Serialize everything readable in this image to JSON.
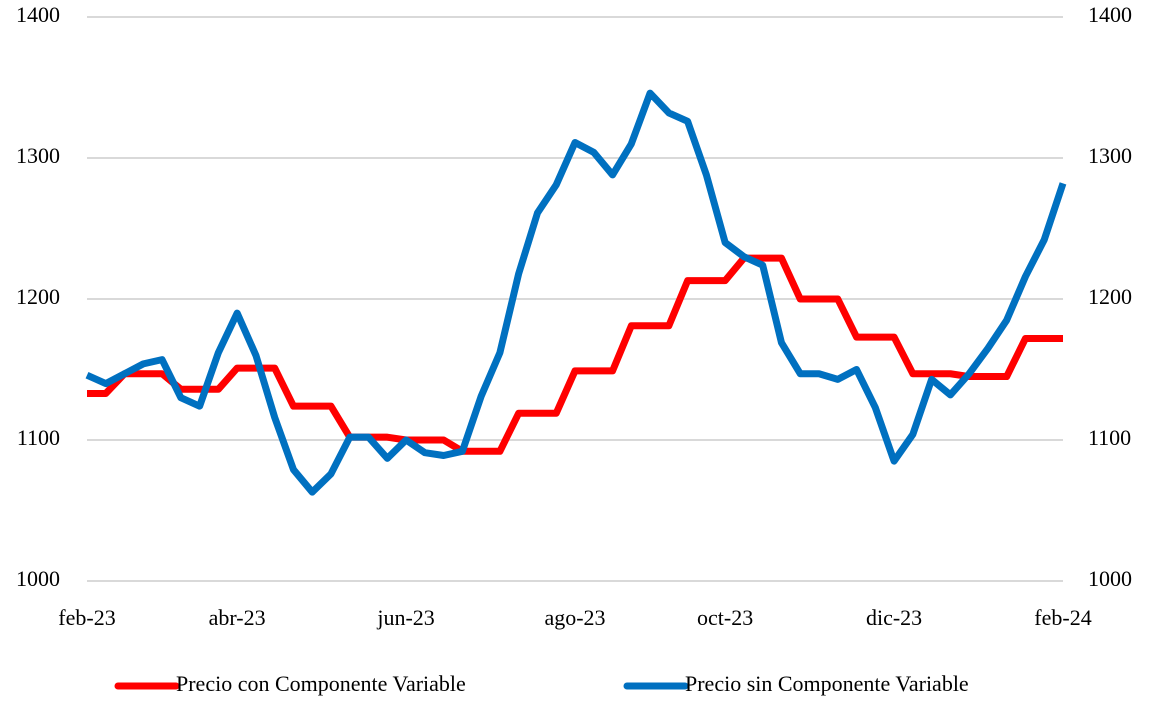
{
  "chart_data": {
    "type": "line",
    "categories": [
      "feb-23",
      null,
      null,
      null,
      null,
      null,
      null,
      null,
      "abr-23",
      null,
      null,
      null,
      null,
      null,
      null,
      null,
      null,
      "jun-23",
      null,
      null,
      null,
      null,
      null,
      null,
      null,
      null,
      "ago-23",
      null,
      null,
      null,
      null,
      null,
      null,
      null,
      "oct-23",
      null,
      null,
      null,
      null,
      null,
      null,
      null,
      null,
      "dic-23",
      null,
      null,
      null,
      null,
      null,
      null,
      null,
      null,
      "feb-24"
    ],
    "series": [
      {
        "name": "Precio con Componente Variable",
        "color": "#ff0000",
        "values": [
          1133,
          1133,
          1147,
          1147,
          1147,
          1136,
          1136,
          1136,
          1151,
          1151,
          1151,
          1124,
          1124,
          1124,
          1102,
          1102,
          1102,
          1100,
          1100,
          1100,
          1092,
          1092,
          1092,
          1119,
          1119,
          1119,
          1149,
          1149,
          1149,
          1181,
          1181,
          1181,
          1213,
          1213,
          1213,
          1229,
          1229,
          1229,
          1200,
          1200,
          1200,
          1173,
          1173,
          1173,
          1147,
          1147,
          1147,
          1145,
          1145,
          1145,
          1172,
          1172,
          1172
        ]
      },
      {
        "name": "Precio sin Componente Variable",
        "color": "#0070c0",
        "values": [
          1146,
          1140,
          1147,
          1154,
          1157,
          1130,
          1124,
          1162,
          1190,
          1160,
          1116,
          1079,
          1063,
          1076,
          1102,
          1102,
          1087,
          1100,
          1091,
          1089,
          1092,
          1131,
          1162,
          1218,
          1261,
          1281,
          1311,
          1304,
          1288,
          1310,
          1346,
          1332,
          1326,
          1288,
          1240,
          1230,
          1224,
          1169,
          1147,
          1147,
          1143,
          1150,
          1123,
          1085,
          1104,
          1143,
          1132,
          1147,
          1165,
          1185,
          1216,
          1242,
          1282
        ]
      }
    ],
    "ylim": [
      1000,
      1400
    ],
    "yticks": [
      1000,
      1100,
      1200,
      1300,
      1400
    ],
    "y2lim": [
      1000,
      1400
    ],
    "y2ticks": [
      1000,
      1100,
      1200,
      1300,
      1400
    ],
    "grid": true,
    "legend": "bottom"
  }
}
